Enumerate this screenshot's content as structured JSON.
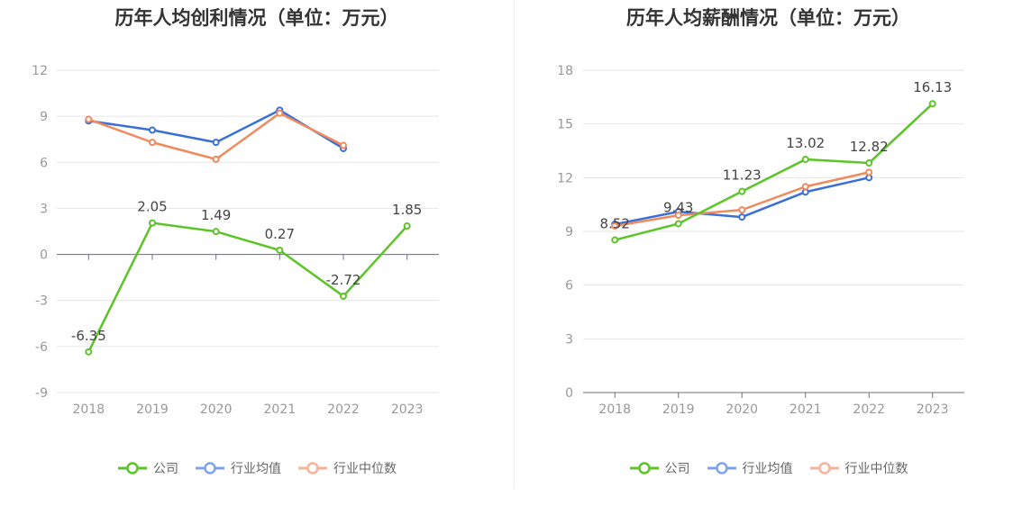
{
  "chart_data": [
    {
      "type": "line",
      "title": "历年人均创利情况（单位：万元）",
      "categories": [
        "2018",
        "2019",
        "2020",
        "2021",
        "2022",
        "2023"
      ],
      "ylim": [
        -9,
        12
      ],
      "yticks": [
        "12",
        "9",
        "6",
        "3",
        "0",
        "-3",
        "-6",
        "-9"
      ],
      "series": [
        {
          "name": "公司",
          "color": "#5bc427",
          "values": [
            -6.35,
            2.05,
            1.49,
            0.27,
            -2.72,
            1.85
          ],
          "labels": [
            "-6.35",
            "2.05",
            "1.49",
            "0.27",
            "-2.72",
            "1.85"
          ]
        },
        {
          "name": "行业均值",
          "color": "#3a6fd8",
          "values": [
            8.7,
            8.1,
            7.3,
            9.4,
            6.9,
            null
          ]
        },
        {
          "name": "行业中位数",
          "color": "#f08a5d",
          "values": [
            8.8,
            7.3,
            6.2,
            9.2,
            7.1,
            null
          ]
        }
      ],
      "legend": "bottom",
      "grid": true
    },
    {
      "type": "line",
      "title": "历年人均薪酬情况（单位：万元）",
      "categories": [
        "2018",
        "2019",
        "2020",
        "2021",
        "2022",
        "2023"
      ],
      "ylim": [
        0,
        18
      ],
      "yticks": [
        "18",
        "15",
        "12",
        "9",
        "6",
        "3",
        "0"
      ],
      "series": [
        {
          "name": "公司",
          "color": "#5bc427",
          "values": [
            8.52,
            9.43,
            11.23,
            13.02,
            12.82,
            16.13
          ],
          "labels": [
            "8.52",
            "9.43",
            "11.23",
            "13.02",
            "12.82",
            "16.13"
          ]
        },
        {
          "name": "行业均值",
          "color": "#3a6fd8",
          "values": [
            9.4,
            10.1,
            9.8,
            11.2,
            12.0,
            null
          ]
        },
        {
          "name": "行业中位数",
          "color": "#f08a5d",
          "values": [
            9.3,
            9.9,
            10.2,
            11.5,
            12.3,
            null
          ]
        }
      ],
      "legend": "bottom",
      "grid": true
    }
  ],
  "legend": {
    "items": [
      {
        "label": "公司",
        "color": "#5bc427"
      },
      {
        "label": "行业均值",
        "color": "#7fa3ea"
      },
      {
        "label": "行业中位数",
        "color": "#f7b39a"
      }
    ]
  }
}
